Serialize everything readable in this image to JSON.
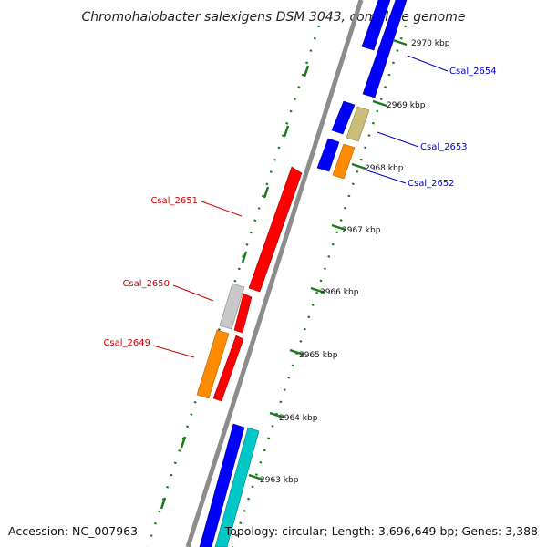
{
  "header": {
    "title": "Chromohalobacter salexigens DSM 3043, complete genome"
  },
  "footer": {
    "accession": "Accession: NC_007963",
    "summary": "Topology: circular; Length: 3,696,649 bp; Genes: 3,388"
  },
  "ticks": [
    {
      "label": "2963 kbp"
    },
    {
      "label": "2964 kbp"
    },
    {
      "label": "2965 kbp"
    },
    {
      "label": "2966 kbp"
    },
    {
      "label": "2967 kbp"
    },
    {
      "label": "2968 kbp"
    },
    {
      "label": "2969 kbp"
    },
    {
      "label": "2970 kbp"
    }
  ],
  "genes": [
    {
      "label": "Csal_2649",
      "color": "#cc0000"
    },
    {
      "label": "Csal_2650",
      "color": "#cc0000"
    },
    {
      "label": "Csal_2651",
      "color": "#cc0000"
    },
    {
      "label": "Csal_2652",
      "color": "#0000cc"
    },
    {
      "label": "Csal_2653",
      "color": "#0000cc"
    },
    {
      "label": "Csal_2654",
      "color": "#0000cc"
    }
  ],
  "colors": {
    "backbone": "#8c8c8c",
    "tick": "#1a7a1a",
    "forward_strand": "#ff0000",
    "reverse_strand": "#0000ff",
    "hypothetical": "#c8c8c8",
    "orange_feature": "#ff8c00",
    "olive_feature": "#c8be78",
    "cyan_feature": "#00c8c8"
  }
}
